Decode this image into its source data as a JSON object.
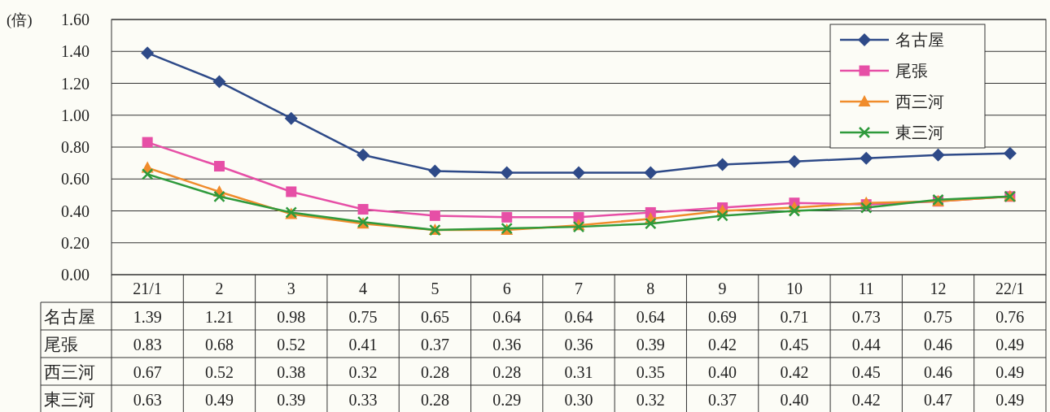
{
  "chart_data": {
    "type": "line",
    "ylabel": "(倍)",
    "categories": [
      "21/1",
      "2",
      "3",
      "4",
      "5",
      "6",
      "7",
      "8",
      "9",
      "10",
      "11",
      "12",
      "22/1"
    ],
    "series": [
      {
        "name": "名古屋",
        "color": "#2e4a88",
        "marker": "diamond",
        "values": [
          1.39,
          1.21,
          0.98,
          0.75,
          0.65,
          0.64,
          0.64,
          0.64,
          0.69,
          0.71,
          0.73,
          0.75,
          0.76
        ],
        "value_labels": [
          "1.39",
          "1.21",
          "0.98",
          "0.75",
          "0.65",
          "0.64",
          "0.64",
          "0.64",
          "0.69",
          "0.71",
          "0.73",
          "0.75",
          "0.76"
        ]
      },
      {
        "name": "尾張",
        "color": "#e64fa6",
        "marker": "square",
        "values": [
          0.83,
          0.68,
          0.52,
          0.41,
          0.37,
          0.36,
          0.36,
          0.39,
          0.42,
          0.45,
          0.44,
          0.46,
          0.49
        ],
        "value_labels": [
          "0.83",
          "0.68",
          "0.52",
          "0.41",
          "0.37",
          "0.36",
          "0.36",
          "0.39",
          "0.42",
          "0.45",
          "0.44",
          "0.46",
          "0.49"
        ]
      },
      {
        "name": "西三河",
        "color": "#f08c2c",
        "marker": "triangle",
        "values": [
          0.67,
          0.52,
          0.38,
          0.32,
          0.28,
          0.28,
          0.31,
          0.35,
          0.4,
          0.42,
          0.45,
          0.46,
          0.49
        ],
        "value_labels": [
          "0.67",
          "0.52",
          "0.38",
          "0.32",
          "0.28",
          "0.28",
          "0.31",
          "0.35",
          "0.40",
          "0.42",
          "0.45",
          "0.46",
          "0.49"
        ]
      },
      {
        "name": "東三河",
        "color": "#2f9a3c",
        "marker": "cross",
        "values": [
          0.63,
          0.49,
          0.39,
          0.33,
          0.28,
          0.29,
          0.3,
          0.32,
          0.37,
          0.4,
          0.42,
          0.47,
          0.49
        ],
        "value_labels": [
          "0.63",
          "0.49",
          "0.39",
          "0.33",
          "0.28",
          "0.29",
          "0.30",
          "0.32",
          "0.37",
          "0.40",
          "0.42",
          "0.47",
          "0.49"
        ]
      }
    ],
    "ylim": [
      0,
      1.6
    ],
    "yticks": [
      {
        "value": 0,
        "label": "0.00"
      },
      {
        "value": 0.2,
        "label": "0.20"
      },
      {
        "value": 0.4,
        "label": "0.40"
      },
      {
        "value": 0.6,
        "label": "0.60"
      },
      {
        "value": 0.8,
        "label": "0.80"
      },
      {
        "value": 1.0,
        "label": "1.00"
      },
      {
        "value": 1.2,
        "label": "1.20"
      },
      {
        "value": 1.4,
        "label": "1.40"
      },
      {
        "value": 1.6,
        "label": "1.60"
      }
    ],
    "grid": "y",
    "legend": "top right"
  }
}
